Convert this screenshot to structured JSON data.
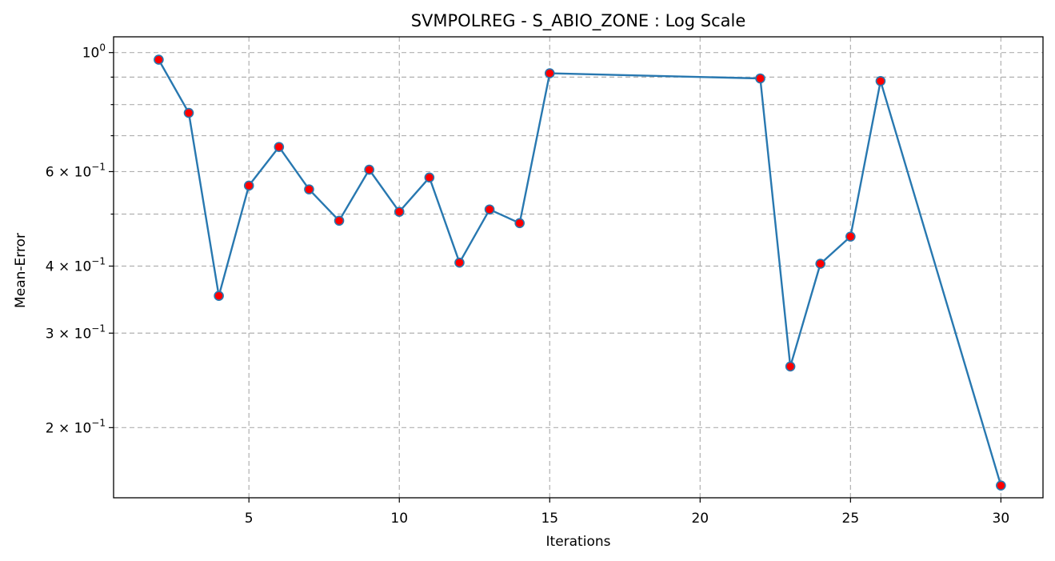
{
  "chart_data": {
    "type": "line",
    "title": "SVMPOLREG - S_ABIO_ZONE : Log Scale",
    "xlabel": "Iterations",
    "ylabel": "Mean-Error",
    "yscale": "log",
    "grid": true,
    "xlim": [
      0.5,
      31.4
    ],
    "ylim": [
      0.148,
      1.07
    ],
    "x_ticks": [
      5,
      10,
      15,
      20,
      25,
      30
    ],
    "y_ticks_major": [
      {
        "value": 1.0,
        "mantissa": "",
        "base": "10",
        "exp": "0"
      },
      {
        "value": 0.6,
        "mantissa": "6 × ",
        "base": "10",
        "exp": "−1"
      },
      {
        "value": 0.4,
        "mantissa": "4 × ",
        "base": "10",
        "exp": "−1"
      },
      {
        "value": 0.3,
        "mantissa": "3 × ",
        "base": "10",
        "exp": "−1"
      },
      {
        "value": 0.2,
        "mantissa": "2 × ",
        "base": "10",
        "exp": "−1"
      }
    ],
    "y_grid_minor": [
      0.9,
      0.8,
      0.7,
      0.5
    ],
    "line_color": "#2878b0",
    "marker_color": "#ff0000",
    "marker_edge_color": "#2878b0",
    "series": [
      {
        "x": [
          2,
          3,
          4,
          5,
          6,
          7,
          8,
          9,
          10,
          11,
          12,
          13,
          14,
          15,
          22,
          23,
          24,
          25,
          26,
          30
        ],
        "y": [
          0.97,
          0.772,
          0.352,
          0.565,
          0.667,
          0.556,
          0.486,
          0.605,
          0.505,
          0.585,
          0.406,
          0.51,
          0.481,
          0.915,
          0.895,
          0.26,
          0.404,
          0.454,
          0.885,
          0.156
        ]
      }
    ]
  }
}
